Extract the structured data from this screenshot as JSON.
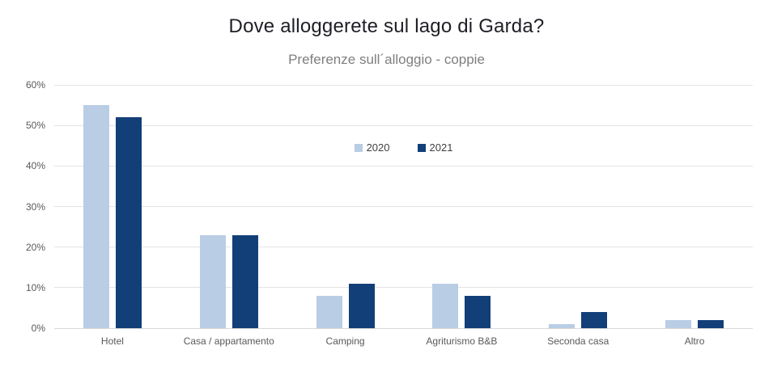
{
  "chart_data": {
    "type": "bar",
    "title": "Dove alloggerete sul lago di Garda?",
    "subtitle": "Preferenze sull´alloggio - coppie",
    "categories": [
      "Hotel",
      "Casa / appartamento",
      "Camping",
      "Agriturismo B&B",
      "Seconda casa",
      "Altro"
    ],
    "series": [
      {
        "name": "2020",
        "color": "#b9cde4",
        "values": [
          55,
          23,
          8,
          11,
          1,
          2
        ]
      },
      {
        "name": "2021",
        "color": "#123f78",
        "values": [
          52,
          23,
          11,
          8,
          4,
          2
        ]
      }
    ],
    "xlabel": "",
    "ylabel": "",
    "ylim": [
      0,
      60
    ],
    "ytick_step": 10,
    "yticks": [
      "0%",
      "10%",
      "20%",
      "30%",
      "40%",
      "50%",
      "60%"
    ],
    "grid": true,
    "legend_position": "inside-top-center"
  },
  "colors": {
    "title_text": "#1e1e26",
    "subtitle_text": "#7f7f7f",
    "axis_text": "#595959",
    "legend_text": "#404040",
    "gridline": "#e3e3e3",
    "background": "#ffffff"
  }
}
